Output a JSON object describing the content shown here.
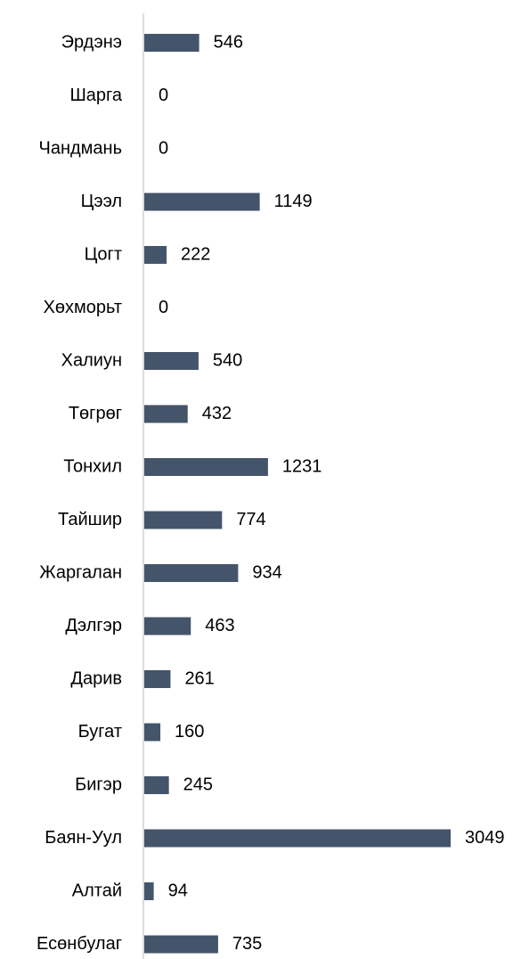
{
  "chart_data": {
    "type": "hbar",
    "categories": [
      "Эрдэнэ",
      "Шарга",
      "Чандмань",
      "Цээл",
      "Цогт",
      "Хөхморьт",
      "Халиун",
      "Төгрөг",
      "Тонхил",
      "Тайшир",
      "Жаргалан",
      "Дэлгэр",
      "Дарив",
      "Бугат",
      "Бигэр",
      "Баян-Уул",
      "Алтай",
      "Есөнбулаг"
    ],
    "values": [
      546,
      0,
      0,
      1149,
      222,
      0,
      540,
      432,
      1231,
      774,
      934,
      463,
      261,
      160,
      245,
      3049,
      94,
      735
    ],
    "color": "#44546a"
  }
}
